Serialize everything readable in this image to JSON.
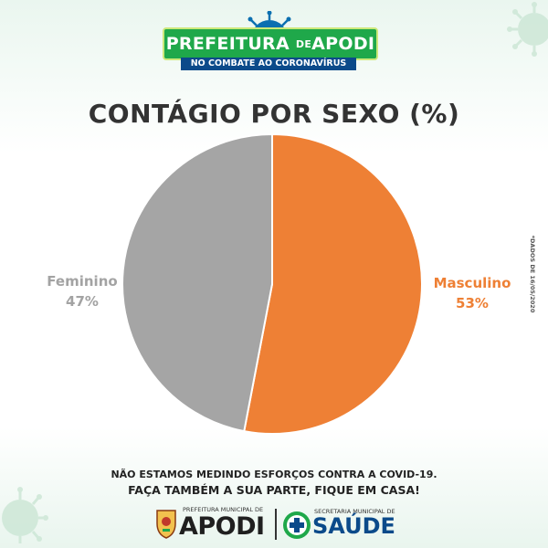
{
  "header": {
    "banner_main": "PREFEITURA",
    "banner_de": "DE",
    "banner_city": "APODI",
    "subbanner": "NO COMBATE AO CORONAVÍRUS"
  },
  "chart_data": {
    "type": "pie",
    "title": "CONTÁGIO POR SEXO (%)",
    "categories": [
      "Masculino",
      "Feminino"
    ],
    "values": [
      53,
      47
    ],
    "value_labels": [
      "53%",
      "47%"
    ],
    "colors": [
      "#ee8035",
      "#a5a5a5"
    ],
    "start_angle": "12 o'clock, clockwise"
  },
  "date_note": "*DADOS DE 16/05/2020",
  "message": {
    "line1": "NÃO ESTAMOS MEDINDO ESFORÇOS CONTRA A COVID-19.",
    "line2": "FAÇA TAMBÉM A SUA PARTE, FIQUE EM CASA!"
  },
  "footer": {
    "apodi_sub": "PREFEITURA MUNICIPAL DE",
    "apodi_name": "APODI",
    "saude_sub": "SECRETARIA MUNICIPAL DE",
    "saude_name": "SAÚDE"
  },
  "icons": [
    "virus-icon",
    "coat-of-arms-icon",
    "health-cross-icon"
  ]
}
